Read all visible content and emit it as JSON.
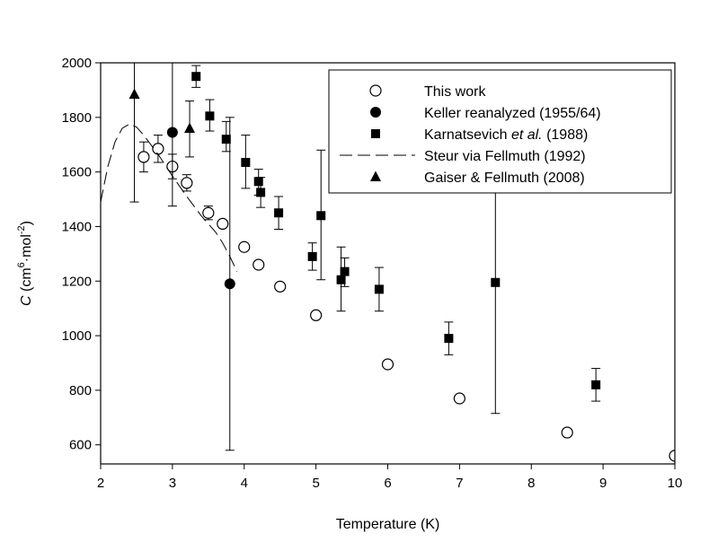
{
  "chart_data": {
    "type": "scatter",
    "title": "",
    "xlabel": "Temperature (K)",
    "ylabel": {
      "symbol": "C",
      "open": " (cm",
      "sup1": "6",
      "mid": "·mol",
      "sup2": "-2",
      "close": ")"
    },
    "xlim": [
      2,
      10
    ],
    "ylim": [
      530,
      2000
    ],
    "xticks": [
      2,
      3,
      4,
      5,
      6,
      7,
      8,
      9,
      10
    ],
    "yticks": [
      600,
      800,
      1000,
      1200,
      1400,
      1600,
      1800,
      2000
    ],
    "legend_position": "top-right",
    "legend_entries": [
      {
        "key": "this_work",
        "marker": "open-circle",
        "parts": [
          {
            "t": "This work"
          }
        ]
      },
      {
        "key": "keller",
        "marker": "filled-circle",
        "parts": [
          {
            "t": "Keller reanalyzed (1955/64)"
          }
        ]
      },
      {
        "key": "karnatsevich",
        "marker": "filled-square",
        "parts": [
          {
            "t": "Karnatsevich "
          },
          {
            "t": "et al.",
            "italic": true
          },
          {
            "t": " (1988)"
          }
        ]
      },
      {
        "key": "steur",
        "marker": "dashed-line",
        "parts": [
          {
            "t": "Steur via Fellmuth (1992)"
          }
        ]
      },
      {
        "key": "gaiser",
        "marker": "filled-triangle",
        "parts": [
          {
            "t": "Gaiser & Fellmuth (2008)"
          }
        ]
      }
    ],
    "series": [
      {
        "key": "this_work",
        "name": "This work",
        "marker": "open-circle",
        "points": [
          {
            "x": 2.6,
            "y": 1655,
            "err": 55
          },
          {
            "x": 2.8,
            "y": 1685,
            "err": 50
          },
          {
            "x": 3.0,
            "y": 1620,
            "err": 45
          },
          {
            "x": 3.2,
            "y": 1560,
            "err": 30
          },
          {
            "x": 3.5,
            "y": 1450,
            "err": 25
          },
          {
            "x": 3.7,
            "y": 1410,
            "err": 0
          },
          {
            "x": 4.0,
            "y": 1325,
            "err": 0
          },
          {
            "x": 4.2,
            "y": 1260,
            "err": 0
          },
          {
            "x": 4.5,
            "y": 1180,
            "err": 0
          },
          {
            "x": 5.0,
            "y": 1075,
            "err": 0
          },
          {
            "x": 6.0,
            "y": 895,
            "err": 0
          },
          {
            "x": 7.0,
            "y": 770,
            "err": 0
          },
          {
            "x": 8.5,
            "y": 645,
            "err": 0
          },
          {
            "x": 10.0,
            "y": 560,
            "err": 0
          }
        ]
      },
      {
        "key": "keller",
        "name": "Keller reanalyzed (1955/64)",
        "marker": "filled-circle",
        "points": [
          {
            "x": 3.0,
            "y": 1745,
            "lo": 1475,
            "hi": 2000
          },
          {
            "x": 3.8,
            "y": 1190,
            "lo": 580,
            "hi": 1800
          }
        ]
      },
      {
        "key": "karnatsevich",
        "name": "Karnatsevich et al. (1988)",
        "marker": "filled-square",
        "points": [
          {
            "x": 3.33,
            "y": 1950,
            "lo": 1910,
            "hi": 1990
          },
          {
            "x": 3.52,
            "y": 1805,
            "lo": 1750,
            "hi": 1865
          },
          {
            "x": 3.75,
            "y": 1720,
            "lo": 1675,
            "hi": 1785
          },
          {
            "x": 4.02,
            "y": 1635,
            "lo": 1540,
            "hi": 1735
          },
          {
            "x": 4.2,
            "y": 1565,
            "lo": 1515,
            "hi": 1610
          },
          {
            "x": 4.23,
            "y": 1525,
            "lo": 1470,
            "hi": 1580
          },
          {
            "x": 4.48,
            "y": 1450,
            "lo": 1390,
            "hi": 1510
          },
          {
            "x": 4.95,
            "y": 1290,
            "lo": 1240,
            "hi": 1340
          },
          {
            "x": 5.07,
            "y": 1440,
            "lo": 1205,
            "hi": 1680
          },
          {
            "x": 5.35,
            "y": 1205,
            "lo": 1090,
            "hi": 1325
          },
          {
            "x": 5.4,
            "y": 1235,
            "lo": 1180,
            "hi": 1285
          },
          {
            "x": 5.88,
            "y": 1170,
            "lo": 1090,
            "hi": 1250
          },
          {
            "x": 6.85,
            "y": 990,
            "lo": 930,
            "hi": 1050
          },
          {
            "x": 7.5,
            "y": 1195,
            "lo": 715,
            "hi": 1670
          },
          {
            "x": 8.9,
            "y": 820,
            "lo": 760,
            "hi": 880
          }
        ]
      },
      {
        "key": "steur",
        "name": "Steur via Fellmuth (1992)",
        "marker": "dashed-line",
        "points": [
          {
            "x": 2.0,
            "y": 1490
          },
          {
            "x": 2.1,
            "y": 1620
          },
          {
            "x": 2.2,
            "y": 1710
          },
          {
            "x": 2.3,
            "y": 1760
          },
          {
            "x": 2.4,
            "y": 1775
          },
          {
            "x": 2.5,
            "y": 1765
          },
          {
            "x": 2.6,
            "y": 1735
          },
          {
            "x": 2.8,
            "y": 1665
          },
          {
            "x": 3.0,
            "y": 1585
          },
          {
            "x": 3.2,
            "y": 1510
          },
          {
            "x": 3.4,
            "y": 1440
          },
          {
            "x": 3.6,
            "y": 1380
          },
          {
            "x": 3.7,
            "y": 1340
          },
          {
            "x": 3.8,
            "y": 1290
          },
          {
            "x": 3.9,
            "y": 1235
          }
        ]
      },
      {
        "key": "gaiser",
        "name": "Gaiser & Fellmuth (2008)",
        "marker": "filled-triangle",
        "points": [
          {
            "x": 2.47,
            "y": 1885,
            "lo": 1490,
            "hi": 2000
          },
          {
            "x": 3.24,
            "y": 1760,
            "lo": 1655,
            "hi": 1860
          }
        ]
      }
    ]
  }
}
